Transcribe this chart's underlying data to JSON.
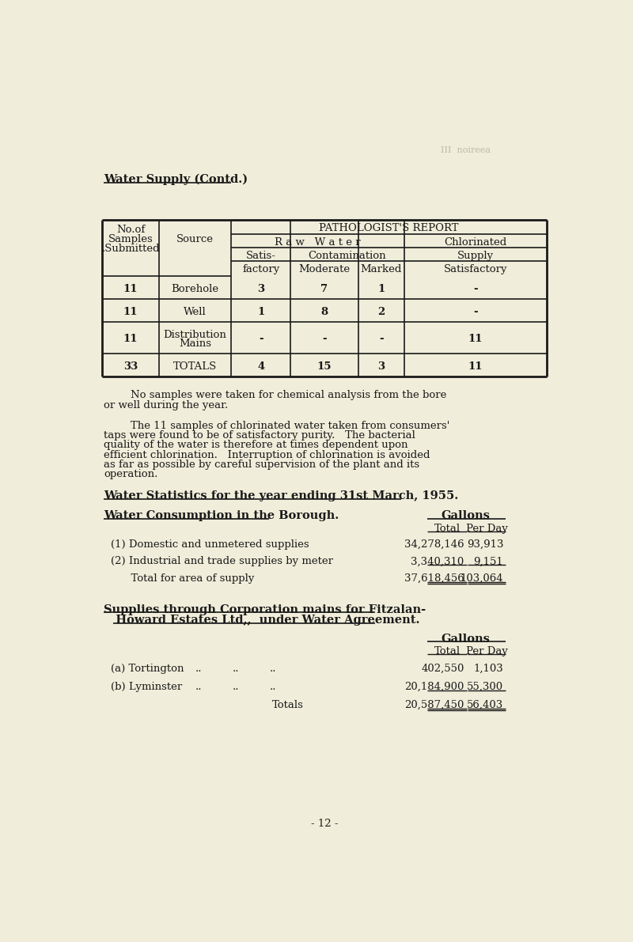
{
  "bg_color": "#f0edda",
  "text_color": "#1a1a1a",
  "page_title": "Water Supply (Contd.)",
  "header_right": "III  noireea",
  "table_data": [
    [
      "11",
      "Borehole",
      "3",
      "7",
      "1",
      "-"
    ],
    [
      "11",
      "Well",
      "1",
      "8",
      "2",
      "-"
    ],
    [
      "11",
      "Distribution\nMains",
      "-",
      "-",
      "-",
      "11"
    ],
    [
      "33",
      "TOTALS",
      "4",
      "15",
      "3",
      "11"
    ]
  ],
  "para1_indent": "        No samples were taken for chemical analysis from the bore\nor well during the year.",
  "para2_indent": "        The 11 samples of chlorinated water taken from consumers'\ntaps were found to be of satisfactory purity.   The bacterial\nquality of the water is therefore at times dependent upon\nefficient chlorination.   Interruption of chlorination is avoided\nas far as possible by careful supervision of the plant and its\noperation.",
  "section2_title": "Water Statistics for the year ending 31st March, 1955.",
  "subsection1_title": "Water Consumption in the Borough.",
  "gallons_header": "Gallons",
  "col_total": "Total",
  "col_per_day": "Per Day",
  "consumption_rows": [
    [
      "(1) Domestic and unmetered supplies",
      "34,278,146",
      "93,913"
    ],
    [
      "(2) Industrial and trade supplies by meter",
      "3,340,310",
      "9,151"
    ],
    [
      "      Total for area of supply",
      "37,618,456",
      "103,064"
    ]
  ],
  "subsection2_title1": "Supplies through Corporation mains for Fitzalan-",
  "subsection2_title2": "   Howard Estates Ltd,,  under Water Agreement.",
  "gallons_header2": "Gallons",
  "col_total2": "Total",
  "col_per_day2": "Per Day",
  "supply_rows": [
    [
      "(a) Tortington",
      "..",
      "..",
      "..",
      "402,550",
      "1,103"
    ],
    [
      "(b) Lyminster",
      "..",
      "..",
      "..",
      "20,184,900",
      "55,300"
    ],
    [
      "",
      "",
      "",
      "Totals",
      "20,587,450",
      "56,403"
    ]
  ],
  "page_number": "- 12 -",
  "fs": 9.5,
  "fs_title": 10.5
}
